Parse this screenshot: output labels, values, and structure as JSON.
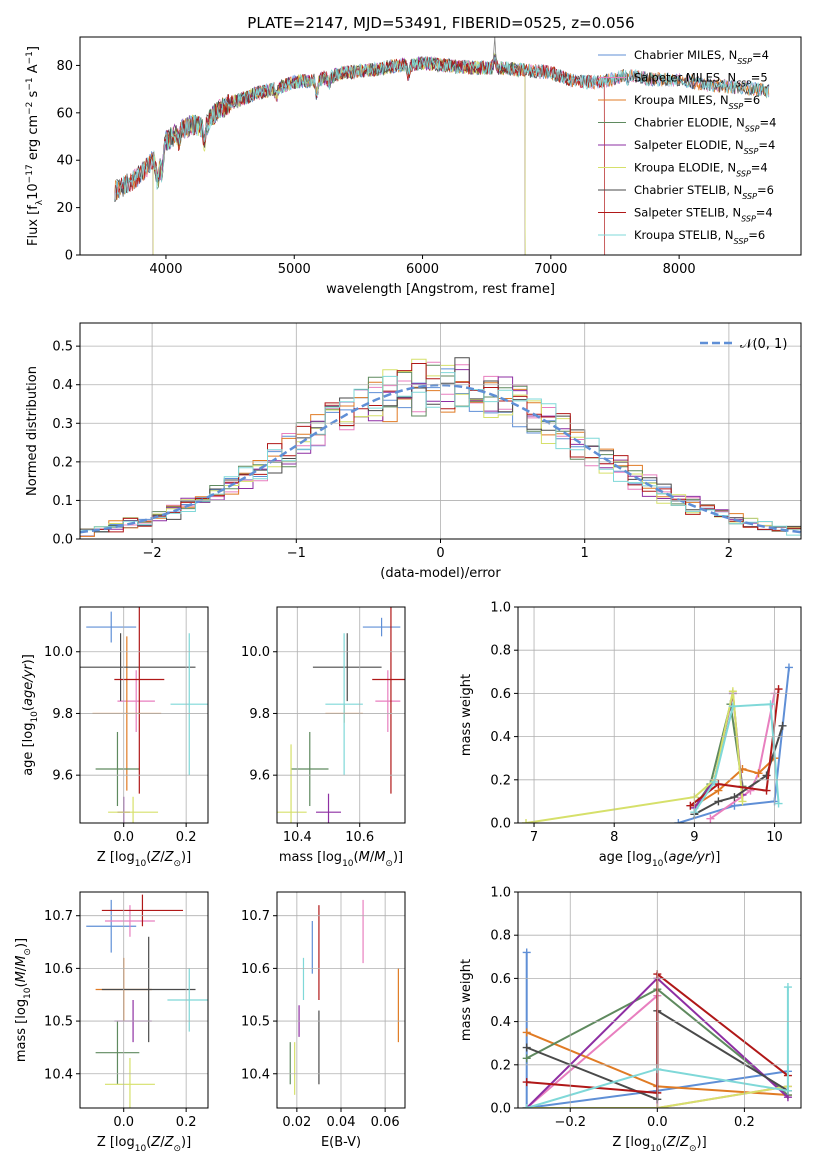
{
  "title": "PLATE=2147, MJD=53491, FIBERID=0525, z=0.056",
  "colors": {
    "Chabrier MILES": "#5f8fd6",
    "Salpeter MILES": "#e87fbf",
    "Kroupa MILES": "#e07b24",
    "Chabrier ELODIE": "#5f8a5f",
    "Salpeter ELODIE": "#8e2fa3",
    "Kroupa ELODIE": "#d6e06a",
    "Chabrier STELIB": "#4a4a4a",
    "Salpeter STELIB": "#b01818",
    "Kroupa STELIB": "#7fd8d8"
  },
  "legend_spectrum": [
    {
      "name": "Chabrier MILES, N_SSP=4",
      "label_main": "Chabrier MILES, N",
      "label_sub": "SSP",
      "label_tail": "=4"
    },
    {
      "name": "Salpeter MILES",
      "label_main": "Salpeter MILES, N",
      "label_sub": "SSP",
      "label_tail": "=5"
    },
    {
      "name": "Kroupa MILES",
      "label_main": "Kroupa MILES, N",
      "label_sub": "SSP",
      "label_tail": "=6"
    },
    {
      "name": "Chabrier ELODIE",
      "label_main": "Chabrier ELODIE, N",
      "label_sub": "SSP",
      "label_tail": "=4"
    },
    {
      "name": "Salpeter ELODIE",
      "label_main": "Salpeter ELODIE, N",
      "label_sub": "SSP",
      "label_tail": "=4"
    },
    {
      "name": "Kroupa ELODIE",
      "label_main": "Kroupa ELODIE, N",
      "label_sub": "SSP",
      "label_tail": "=4"
    },
    {
      "name": "Chabrier STELIB",
      "label_main": "Chabrier STELIB, N",
      "label_sub": "SSP",
      "label_tail": "=6"
    },
    {
      "name": "Salpeter STELIB",
      "label_main": "Salpeter STELIB, N",
      "label_sub": "SSP",
      "label_tail": "=4"
    },
    {
      "name": "Kroupa STELIB",
      "label_main": "Kroupa STELIB, N",
      "label_sub": "SSP",
      "label_tail": "=6"
    }
  ],
  "chart_data": [
    {
      "type": "line",
      "id": "spectrum",
      "xlabel": "wavelength [Angstrom, rest frame]",
      "ylabel": "Flux [f_λ 10^-17 erg cm^-2 s^-1 A^-1]",
      "xlim": [
        3330,
        8950
      ],
      "ylim": [
        0,
        92
      ],
      "xticks": [
        4000,
        5000,
        6000,
        7000,
        8000
      ],
      "yticks": [
        0,
        20,
        40,
        60,
        80
      ],
      "continuum_data": {
        "x": [
          3600,
          3700,
          3800,
          3900,
          3950,
          4000,
          4100,
          4200,
          4300,
          4400,
          4500,
          4700,
          4900,
          5000,
          5200,
          5400,
          5600,
          5800,
          5900,
          6000,
          6200,
          6400,
          6600,
          6800,
          7000,
          7200,
          7400,
          7600,
          7800,
          8000,
          8200,
          8400,
          8600,
          8700
        ],
        "y": [
          27,
          30,
          34,
          40,
          38,
          48,
          52,
          55,
          54,
          61,
          64,
          68,
          71,
          73,
          74,
          77,
          78,
          80,
          80,
          81,
          80,
          79,
          79,
          78,
          77,
          73,
          73,
          76,
          74,
          74,
          72,
          71,
          70,
          69
        ]
      },
      "series": [
        {
          "name": "Chabrier MILES, N_SSP=4",
          "model": "Chabrier MILES",
          "x_range": [
            3600,
            8700
          ]
        },
        {
          "name": "Salpeter MILES, N_SSP=5",
          "model": "Salpeter MILES",
          "x_range": [
            3600,
            8700
          ]
        },
        {
          "name": "Kroupa MILES, N_SSP=6",
          "model": "Kroupa MILES",
          "x_range": [
            3600,
            8700
          ]
        },
        {
          "name": "Chabrier ELODIE, N_SSP=4",
          "model": "Chabrier ELODIE",
          "x_range": [
            3900,
            6800
          ]
        },
        {
          "name": "Salpeter ELODIE, N_SSP=4",
          "model": "Salpeter ELODIE",
          "x_range": [
            3900,
            6800
          ]
        },
        {
          "name": "Kroupa ELODIE, N_SSP=4",
          "model": "Kroupa ELODIE",
          "x_range": [
            3900,
            6800
          ]
        },
        {
          "name": "Chabrier STELIB, N_SSP=6",
          "model": "Chabrier STELIB",
          "x_range": [
            3600,
            8700
          ]
        },
        {
          "name": "Salpeter STELIB, N_SSP=4",
          "model": "Salpeter STELIB",
          "x_range": [
            3600,
            7420
          ]
        },
        {
          "name": "Kroupa STELIB, N_SSP=6",
          "model": "Kroupa STELIB",
          "x_range": [
            3600,
            8700
          ]
        }
      ],
      "data_line": {
        "color": "#888888",
        "spike_x": 6563,
        "spike_y": 92
      }
    },
    {
      "type": "histogram",
      "id": "residuals",
      "xlabel": "(data-model)/error",
      "ylabel": "Normed distribution",
      "xlim": [
        -2.5,
        2.5
      ],
      "ylim": [
        0,
        0.56
      ],
      "xticks": [
        -2,
        -1,
        0,
        1,
        2
      ],
      "yticks": [
        0,
        0.1,
        0.2,
        0.3,
        0.4,
        0.5
      ],
      "bin_width": 0.1,
      "normal_curve": {
        "label": "𝒩(0, 1)",
        "color": "#5f8fd6"
      }
    },
    {
      "type": "errorbar",
      "id": "age_vs_Z",
      "xlabel": "Z [log10(Z/Z⊙)]",
      "ylabel": "age [log10(age/yr)]",
      "xlim": [
        -0.14,
        0.27
      ],
      "ylim": [
        9.445,
        10.145
      ],
      "xticks": [
        0.0,
        0.2
      ],
      "yticks": [
        9.6,
        9.8,
        10.0
      ],
      "points": [
        {
          "model": "Chabrier MILES",
          "x": -0.04,
          "xerr": 0.08,
          "y": 10.08,
          "yerr": 0.05
        },
        {
          "model": "Salpeter MILES",
          "x": 0.04,
          "xerr": 0.06,
          "y": 9.84,
          "yerr": 0.1
        },
        {
          "model": "Kroupa MILES",
          "x": 0.01,
          "xerr": 0.11,
          "y": 9.8,
          "yerr": 0.25
        },
        {
          "model": "Chabrier ELODIE",
          "x": -0.02,
          "xerr": 0.07,
          "y": 9.62,
          "yerr": 0.12
        },
        {
          "model": "Salpeter ELODIE",
          "x": 0.0,
          "xerr": 0.02,
          "y": 9.48,
          "yerr": 0.05
        },
        {
          "model": "Kroupa ELODIE",
          "x": 0.03,
          "xerr": 0.08,
          "y": 9.48,
          "yerr": 0.05
        },
        {
          "model": "Chabrier STELIB",
          "x": -0.01,
          "xerr": 0.24,
          "y": 9.95,
          "yerr": 0.11
        },
        {
          "model": "Salpeter STELIB",
          "x": 0.05,
          "xerr": 0.08,
          "y": 9.91,
          "yerr": 0.37
        },
        {
          "model": "Kroupa STELIB",
          "x": 0.21,
          "xerr": 0.06,
          "y": 9.83,
          "yerr": 0.23
        }
      ]
    },
    {
      "type": "errorbar",
      "id": "age_vs_mass",
      "xlabel": "mass [log10(M/M⊙)]",
      "ylabel": "",
      "xlim": [
        10.335,
        10.745
      ],
      "ylim": [
        9.445,
        10.145
      ],
      "xticks": [
        10.4,
        10.6
      ],
      "yticks": [
        9.6,
        9.8,
        10.0
      ],
      "points": [
        {
          "model": "Chabrier MILES",
          "x": 10.67,
          "xerr": 0.06,
          "y": 10.08,
          "yerr": 0.03
        },
        {
          "model": "Salpeter MILES",
          "x": 10.69,
          "xerr": 0.04,
          "y": 9.84,
          "yerr": 0.1
        },
        {
          "model": "Kroupa MILES",
          "x": 10.55,
          "xerr": 0.06,
          "y": 9.8,
          "yerr": 0.03
        },
        {
          "model": "Chabrier ELODIE",
          "x": 10.44,
          "xerr": 0.06,
          "y": 9.62,
          "yerr": 0.12
        },
        {
          "model": "Salpeter ELODIE",
          "x": 10.5,
          "xerr": 0.04,
          "y": 9.48,
          "yerr": 0.06
        },
        {
          "model": "Kroupa ELODIE",
          "x": 10.38,
          "xerr": 0.05,
          "y": 9.48,
          "yerr": 0.22
        },
        {
          "model": "Chabrier STELIB",
          "x": 10.56,
          "xerr": 0.11,
          "y": 9.95,
          "yerr": 0.11
        },
        {
          "model": "Salpeter STELIB",
          "x": 10.7,
          "xerr": 0.06,
          "y": 9.91,
          "yerr": 0.37
        },
        {
          "model": "Kroupa STELIB",
          "x": 10.55,
          "xerr": 0.06,
          "y": 9.83,
          "yerr": 0.23
        }
      ]
    },
    {
      "type": "line",
      "id": "weight_vs_age",
      "xlabel": "age [log10(age/yr)]",
      "ylabel": "mass weight",
      "xlim": [
        6.8,
        10.33
      ],
      "ylim": [
        0,
        1
      ],
      "xticks": [
        7,
        8,
        9,
        10
      ],
      "yticks": [
        0,
        0.2,
        0.4,
        0.6,
        0.8,
        1.0
      ],
      "series": [
        {
          "model": "Chabrier MILES",
          "x": [
            8.8,
            9.5,
            10.0,
            10.18
          ],
          "y": [
            0.0,
            0.08,
            0.1,
            0.72
          ]
        },
        {
          "model": "Salpeter MILES",
          "x": [
            9.2,
            9.7,
            9.8,
            10.0
          ],
          "y": [
            0.02,
            0.15,
            0.23,
            0.6
          ]
        },
        {
          "model": "Kroupa MILES",
          "x": [
            9.0,
            9.3,
            9.6,
            9.8,
            10.0
          ],
          "y": [
            0.08,
            0.15,
            0.25,
            0.23,
            0.3
          ]
        },
        {
          "model": "Chabrier ELODIE",
          "x": [
            9.05,
            9.2,
            9.45,
            9.6
          ],
          "y": [
            0.1,
            0.18,
            0.55,
            0.17
          ]
        },
        {
          "model": "Salpeter ELODIE",
          "x": [
            9.0,
            9.25,
            9.48,
            9.6
          ],
          "y": [
            0.07,
            0.2,
            0.6,
            0.13
          ]
        },
        {
          "model": "Kroupa ELODIE",
          "x": [
            6.9,
            9.0,
            9.25,
            9.48,
            9.6
          ],
          "y": [
            0.0,
            0.12,
            0.2,
            0.61,
            0.1
          ]
        },
        {
          "model": "Chabrier STELIB",
          "x": [
            9.0,
            9.3,
            9.5,
            9.9,
            10.1
          ],
          "y": [
            0.04,
            0.1,
            0.12,
            0.22,
            0.45
          ]
        },
        {
          "model": "Salpeter STELIB",
          "x": [
            8.95,
            9.3,
            9.9,
            10.05
          ],
          "y": [
            0.08,
            0.18,
            0.15,
            0.62
          ]
        },
        {
          "model": "Kroupa STELIB",
          "x": [
            9.0,
            9.25,
            9.48,
            9.95,
            10.05
          ],
          "y": [
            0.05,
            0.19,
            0.54,
            0.55,
            0.09
          ]
        }
      ]
    },
    {
      "type": "errorbar",
      "id": "mass_vs_Z",
      "xlabel": "Z [log10(Z/Z⊙)]",
      "ylabel": "mass [log10(M/M⊙)]",
      "xlim": [
        -0.14,
        0.27
      ],
      "ylim": [
        10.335,
        10.745
      ],
      "xticks": [
        0.0,
        0.2
      ],
      "yticks": [
        10.4,
        10.5,
        10.6,
        10.7
      ],
      "points": [
        {
          "model": "Chabrier MILES",
          "x": -0.04,
          "xerr": 0.08,
          "y": 10.68,
          "yerr": 0.05
        },
        {
          "model": "Salpeter MILES",
          "x": 0.02,
          "xerr": 0.08,
          "y": 10.69,
          "yerr": 0.03
        },
        {
          "model": "Kroupa MILES",
          "x": 0.0,
          "xerr": 0.09,
          "y": 10.56,
          "yerr": 0.06
        },
        {
          "model": "Chabrier ELODIE",
          "x": -0.02,
          "xerr": 0.07,
          "y": 10.44,
          "yerr": 0.06
        },
        {
          "model": "Salpeter ELODIE",
          "x": 0.03,
          "xerr": 0.06,
          "y": 10.5,
          "yerr": 0.04
        },
        {
          "model": "Kroupa ELODIE",
          "x": 0.02,
          "xerr": 0.08,
          "y": 10.38,
          "yerr": 0.05
        },
        {
          "model": "Chabrier STELIB",
          "x": 0.08,
          "xerr": 0.15,
          "y": 10.56,
          "yerr": 0.1
        },
        {
          "model": "Salpeter STELIB",
          "x": 0.06,
          "xerr": 0.13,
          "y": 10.71,
          "yerr": 0.03
        },
        {
          "model": "Kroupa STELIB",
          "x": 0.21,
          "xerr": 0.07,
          "y": 10.54,
          "yerr": 0.06
        }
      ]
    },
    {
      "type": "errorbar",
      "id": "mass_vs_EBV",
      "xlabel": "E(B-V)",
      "ylabel": "",
      "xlim": [
        0.011,
        0.069
      ],
      "ylim": [
        10.335,
        10.745
      ],
      "xticks": [
        0.02,
        0.04,
        0.06
      ],
      "yticks": [
        10.4,
        10.5,
        10.6,
        10.7
      ],
      "points": [
        {
          "model": "Chabrier MILES",
          "x": 0.027,
          "xerr": 0.0,
          "y": 10.64,
          "yerr": 0.05
        },
        {
          "model": "Salpeter MILES",
          "x": 0.05,
          "xerr": 0.0,
          "y": 10.67,
          "yerr": 0.06
        },
        {
          "model": "Kroupa MILES",
          "x": 0.066,
          "xerr": 0.0,
          "y": 10.53,
          "yerr": 0.07
        },
        {
          "model": "Chabrier ELODIE",
          "x": 0.017,
          "xerr": 0.0,
          "y": 10.42,
          "yerr": 0.04
        },
        {
          "model": "Salpeter ELODIE",
          "x": 0.021,
          "xerr": 0.0,
          "y": 10.5,
          "yerr": 0.03
        },
        {
          "model": "Kroupa ELODIE",
          "x": 0.019,
          "xerr": 0.0,
          "y": 10.41,
          "yerr": 0.05
        },
        {
          "model": "Chabrier STELIB",
          "x": 0.03,
          "xerr": 0.0,
          "y": 10.45,
          "yerr": 0.07
        },
        {
          "model": "Salpeter STELIB",
          "x": 0.03,
          "xerr": 0.0,
          "y": 10.63,
          "yerr": 0.09
        },
        {
          "model": "Kroupa STELIB",
          "x": 0.023,
          "xerr": 0.0,
          "y": 10.58,
          "yerr": 0.04
        }
      ]
    },
    {
      "type": "line",
      "id": "weight_vs_Z",
      "xlabel": "Z [log10(Z/Z⊙)]",
      "ylabel": "mass weight",
      "xlim": [
        -0.32,
        0.33
      ],
      "ylim": [
        0,
        1
      ],
      "xticks": [
        -0.2,
        0.0,
        0.2
      ],
      "yticks": [
        0,
        0.2,
        0.4,
        0.6,
        0.8,
        1.0
      ],
      "series": [
        {
          "model": "Chabrier MILES",
          "x": [
            -0.3,
            -0.3,
            0.0,
            0.3
          ],
          "y": [
            0.72,
            0.0,
            0.08,
            0.17
          ]
        },
        {
          "model": "Salpeter MILES",
          "x": [
            -0.3,
            0.0,
            0.0,
            0.3
          ],
          "y": [
            0.0,
            0.52,
            0.0,
            0.1
          ]
        },
        {
          "model": "Kroupa MILES",
          "x": [
            -0.3,
            0.0,
            0.3
          ],
          "y": [
            0.35,
            0.1,
            0.06
          ]
        },
        {
          "model": "Chabrier ELODIE",
          "x": [
            -0.3,
            0.0,
            0.3
          ],
          "y": [
            0.23,
            0.55,
            0.06
          ]
        },
        {
          "model": "Salpeter ELODIE",
          "x": [
            -0.3,
            0.0,
            0.3
          ],
          "y": [
            0.0,
            0.6,
            0.05
          ]
        },
        {
          "model": "Kroupa ELODIE",
          "x": [
            -0.3,
            0.0,
            0.3
          ],
          "y": [
            0.0,
            0.0,
            0.1
          ]
        },
        {
          "model": "Chabrier STELIB",
          "x": [
            -0.3,
            0.0,
            0.0,
            0.3
          ],
          "y": [
            0.28,
            0.04,
            0.45,
            0.08
          ]
        },
        {
          "model": "Salpeter STELIB",
          "x": [
            -0.3,
            0.0,
            0.0,
            0.3
          ],
          "y": [
            0.12,
            0.07,
            0.62,
            0.15
          ]
        },
        {
          "model": "Kroupa STELIB",
          "x": [
            -0.3,
            0.0,
            0.3,
            0.3
          ],
          "y": [
            0.0,
            0.18,
            0.08,
            0.56
          ]
        }
      ]
    }
  ]
}
